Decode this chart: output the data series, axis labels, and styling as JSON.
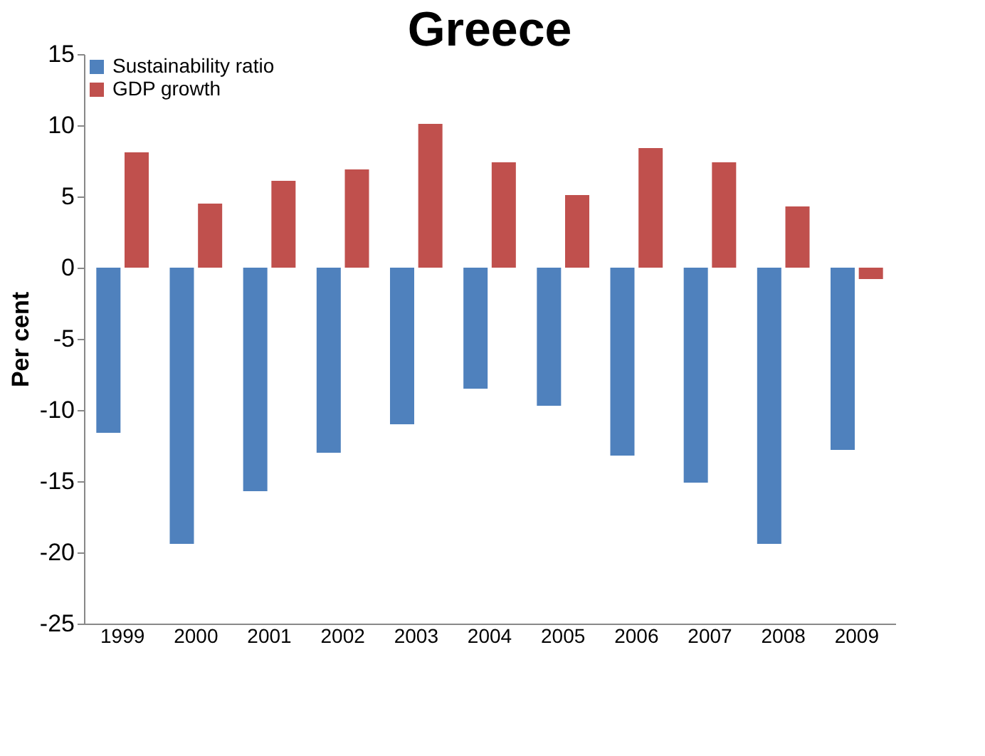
{
  "chart_data": {
    "type": "bar",
    "title": "Greece",
    "ylabel": "Per cent",
    "categories": [
      "1999",
      "2000",
      "2001",
      "2002",
      "2003",
      "2004",
      "2005",
      "2006",
      "2007",
      "2008",
      "2009"
    ],
    "series": [
      {
        "name": "Sustainability ratio",
        "color": "#4f81bd",
        "values": [
          -11.6,
          -19.4,
          -15.7,
          -13,
          -11,
          -8.5,
          -9.7,
          -13.2,
          -15.1,
          -19.4,
          -12.8
        ]
      },
      {
        "name": "GDP growth",
        "color": "#c0504d",
        "values": [
          8.1,
          4.5,
          6.1,
          6.9,
          10.1,
          7.4,
          5.1,
          8.4,
          7.4,
          4.3,
          -0.8
        ]
      }
    ],
    "ylim": [
      -25,
      15
    ],
    "yticks": [
      -25,
      -20,
      -15,
      -10,
      -5,
      0,
      5,
      10,
      15
    ],
    "grid": false,
    "legend": "top left"
  }
}
